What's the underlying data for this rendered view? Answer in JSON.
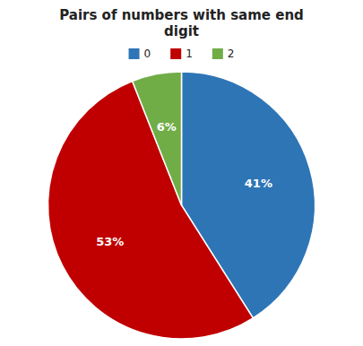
{
  "chart_data": {
    "type": "pie",
    "title": "Pairs of numbers with same end\ndigit",
    "categories": [
      "0",
      "1",
      "2"
    ],
    "values": [
      41,
      53,
      6
    ],
    "value_labels": [
      "41%",
      "53%",
      "6%"
    ],
    "colors": [
      "#2E75B6",
      "#C00000",
      "#70AD47"
    ],
    "data_labels": true,
    "legend": "top"
  }
}
